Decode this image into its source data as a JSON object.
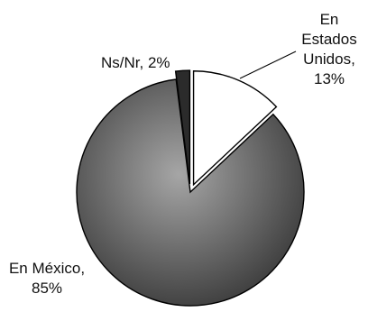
{
  "chart_data": {
    "type": "pie",
    "slices": [
      {
        "label": "En Estados Unidos",
        "value": 13,
        "label_lines": [
          "En",
          "Estados",
          "Unidos,",
          "13%"
        ],
        "color": "#ffffff",
        "explode": true
      },
      {
        "label": "En México",
        "value": 85,
        "label_lines": [
          "En México,",
          "85%"
        ],
        "color": "#6a6a6a",
        "explode": false
      },
      {
        "label": "Ns/Nr",
        "value": 2,
        "label_lines": [
          "Ns/Nr, 2%"
        ],
        "color": "#2b2b2b",
        "explode": true
      }
    ],
    "colors": {
      "mexico_dark": "#3a3a3a",
      "mexico_light": "#a4a4a4",
      "outline": "#000000",
      "leader_line": "#000000"
    },
    "legend": "none",
    "data_labels": "outside"
  }
}
